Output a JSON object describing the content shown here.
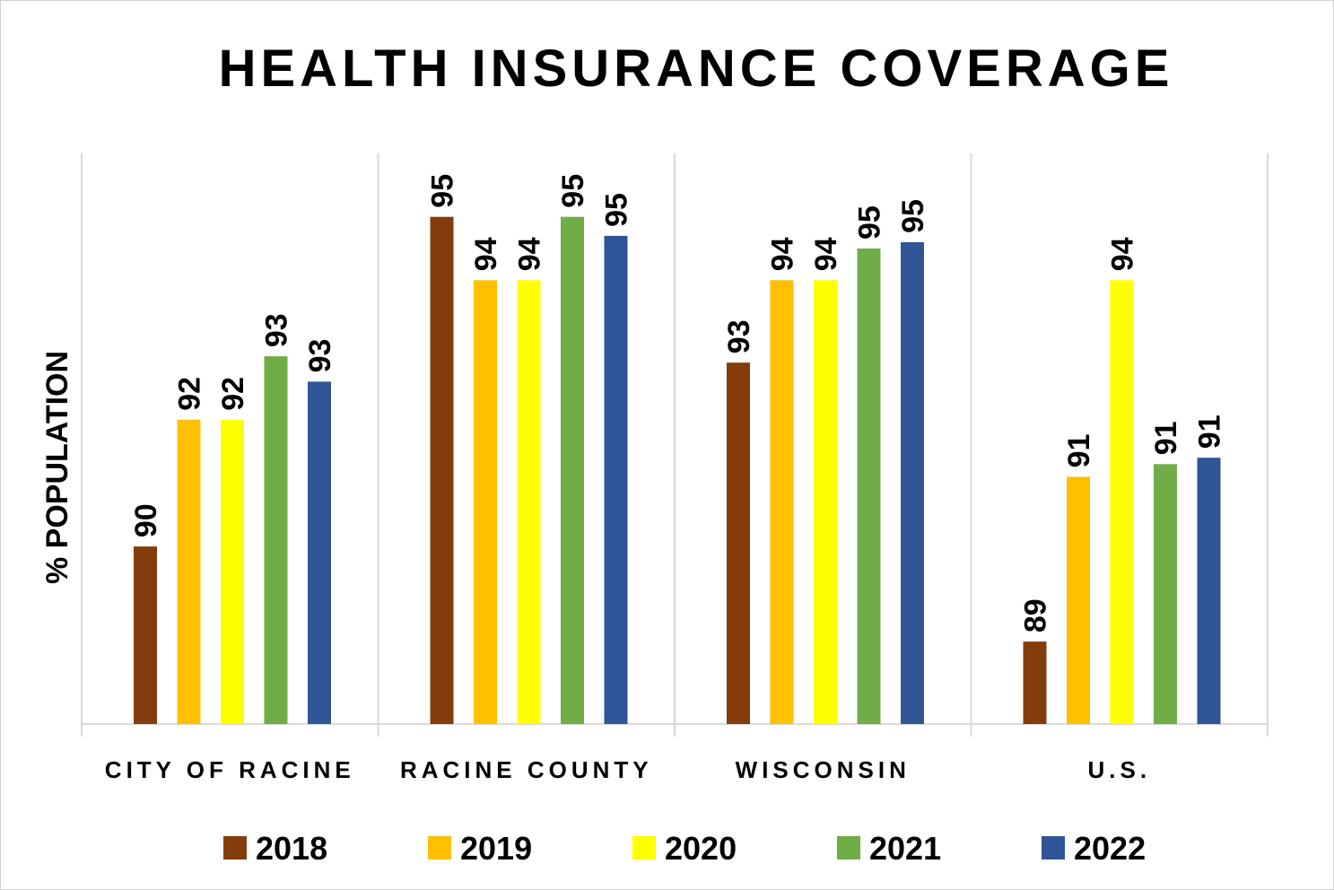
{
  "chart_data": {
    "type": "bar",
    "title": "HEALTH INSURANCE COVERAGE",
    "xlabel": "",
    "ylabel": "% POPULATION",
    "categories": [
      "CITY OF RACINE",
      "RACINE COUNTY",
      "WISCONSIN",
      "U.S."
    ],
    "ylim": [
      87.2,
      96.2
    ],
    "grid": false,
    "legend_position": "bottom",
    "series": [
      {
        "name": "2018",
        "color": "#843C0C",
        "values": [
          90.0,
          95.2,
          92.9,
          88.5
        ],
        "labels": [
          "90",
          "95",
          "93",
          "89"
        ]
      },
      {
        "name": "2019",
        "color": "#FFC000",
        "values": [
          92.0,
          94.2,
          94.2,
          91.1
        ],
        "labels": [
          "92",
          "94",
          "94",
          "91"
        ]
      },
      {
        "name": "2020",
        "color": "#FFFF00",
        "values": [
          92.0,
          94.2,
          94.2,
          94.2
        ],
        "labels": [
          "92",
          "94",
          "94",
          "94"
        ]
      },
      {
        "name": "2021",
        "color": "#70AD47",
        "values": [
          93.0,
          95.2,
          94.7,
          91.3
        ],
        "labels": [
          "93",
          "95",
          "95",
          "91"
        ]
      },
      {
        "name": "2022",
        "color": "#2F5597",
        "values": [
          92.6,
          94.9,
          94.8,
          91.4
        ],
        "labels": [
          "93",
          "95",
          "95",
          "91"
        ]
      }
    ]
  }
}
